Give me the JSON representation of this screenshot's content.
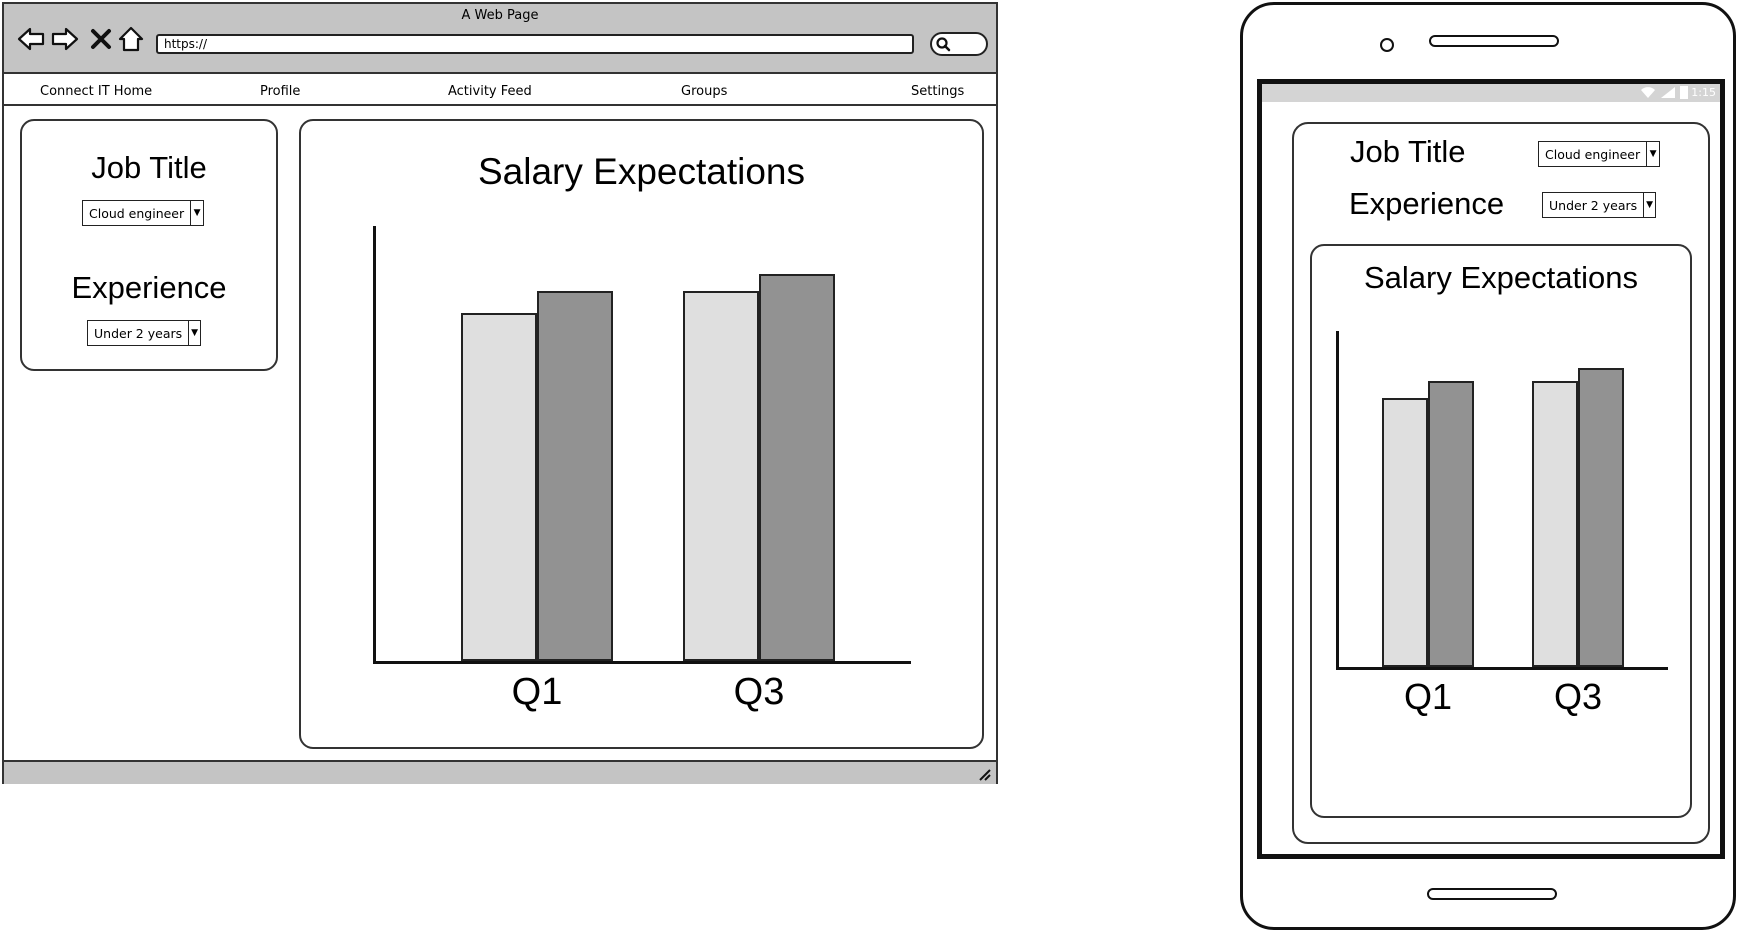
{
  "browser": {
    "window_title": "A Web Page",
    "url": "https://",
    "nav_items": [
      "Connect IT Home",
      "Profile",
      "Activity Feed",
      "Groups",
      "Settings"
    ]
  },
  "filters": {
    "job_title_label": "Job Title",
    "job_title_value": "Cloud engineer",
    "experience_label": "Experience",
    "experience_value": "Under 2 years"
  },
  "phone": {
    "status_time": "1:15"
  },
  "chart_data": {
    "type": "bar",
    "title": "Salary Expectations",
    "categories": [
      "Q1",
      "Q3"
    ],
    "series": [
      {
        "values": [
          80,
          85
        ],
        "color": "#dfdfdf"
      },
      {
        "values": [
          85,
          89
        ],
        "color": "#929292"
      }
    ],
    "ylim": [
      0,
      100
    ],
    "grid": false
  }
}
